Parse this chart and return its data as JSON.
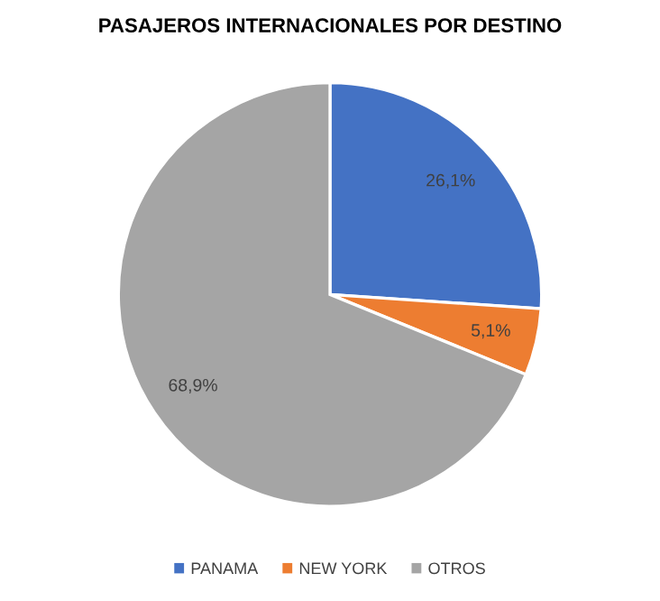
{
  "chart_data": {
    "type": "pie",
    "title": "PASAJEROS INTERNACIONALES POR DESTINO",
    "categories": [
      "PANAMA",
      "NEW YORK",
      "OTROS"
    ],
    "values": [
      26.1,
      5.1,
      68.9
    ],
    "value_labels": [
      "26,1%",
      "5,1%",
      "68,9%"
    ],
    "colors": [
      "#4472c4",
      "#ed7d31",
      "#a5a5a5"
    ],
    "legend": "bottom"
  }
}
